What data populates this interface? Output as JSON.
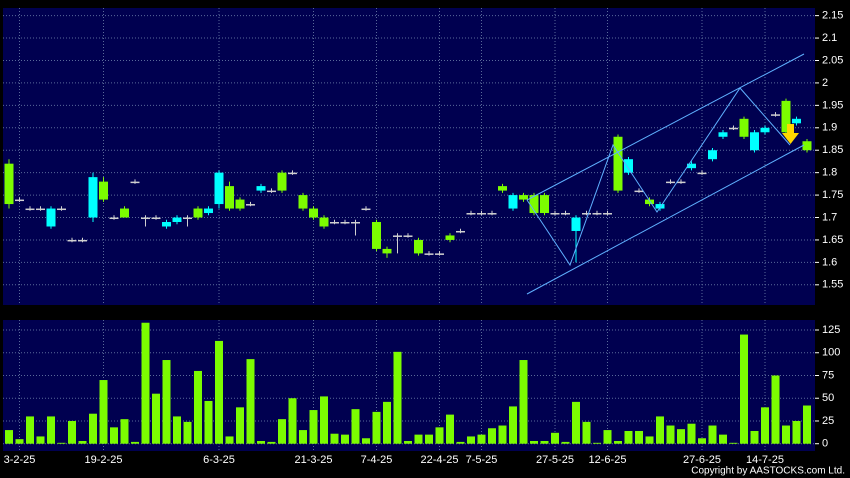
{
  "chart_data": [
    {
      "type": "candlestick",
      "categories": [
        null,
        "3-2-25",
        null,
        null,
        null,
        null,
        null,
        null,
        null,
        "19-2-25",
        null,
        null,
        null,
        null,
        null,
        null,
        null,
        null,
        null,
        null,
        "6-3-25",
        null,
        null,
        null,
        null,
        null,
        null,
        null,
        null,
        "21-3-25",
        null,
        null,
        null,
        null,
        null,
        "7-4-25",
        null,
        null,
        null,
        null,
        null,
        "22-4-25",
        null,
        null,
        null,
        "7-5-25",
        null,
        null,
        null,
        null,
        null,
        null,
        "27-5-25",
        null,
        null,
        null,
        null,
        "12-6-25",
        null,
        null,
        null,
        null,
        null,
        null,
        null,
        null,
        "27-6-25",
        null,
        null,
        null,
        null,
        null,
        "14-7-25",
        null,
        null,
        null,
        null
      ],
      "open": [
        1.73,
        1.74,
        1.72,
        1.72,
        1.72,
        1.72,
        1.65,
        1.65,
        1.79,
        1.74,
        1.7,
        1.7,
        1.78,
        1.7,
        1.7,
        1.69,
        1.7,
        1.7,
        1.7,
        1.72,
        1.8,
        1.72,
        1.72,
        1.73,
        1.77,
        1.76,
        1.76,
        1.8,
        1.72,
        1.7,
        1.68,
        1.69,
        1.69,
        1.69,
        1.72,
        1.63,
        1.62,
        1.66,
        1.66,
        1.62,
        1.62,
        1.62,
        1.65,
        1.67,
        1.71,
        1.71,
        1.71,
        1.76,
        1.75,
        1.74,
        1.71,
        1.71,
        1.71,
        1.71,
        1.7,
        1.71,
        1.71,
        1.71,
        1.76,
        1.83,
        1.76,
        1.73,
        1.73,
        1.78,
        1.78,
        1.82,
        1.8,
        1.85,
        1.89,
        1.9,
        1.88,
        1.89,
        1.9,
        1.93,
        1.89,
        1.92,
        1.85
      ],
      "high": [
        1.83,
        1.745,
        1.725,
        1.725,
        1.725,
        1.725,
        1.655,
        1.655,
        1.8,
        1.79,
        1.705,
        1.725,
        1.785,
        1.705,
        1.705,
        1.695,
        1.705,
        1.705,
        1.725,
        1.725,
        1.805,
        1.78,
        1.745,
        1.735,
        1.775,
        1.765,
        1.805,
        1.805,
        1.755,
        1.725,
        1.705,
        1.695,
        1.695,
        1.695,
        1.725,
        1.695,
        1.635,
        1.665,
        1.665,
        1.655,
        1.625,
        1.625,
        1.665,
        1.675,
        1.715,
        1.715,
        1.715,
        1.775,
        1.755,
        1.755,
        1.755,
        1.755,
        1.715,
        1.715,
        1.705,
        1.715,
        1.715,
        1.715,
        1.885,
        1.835,
        1.765,
        1.745,
        1.735,
        1.785,
        1.785,
        1.825,
        1.805,
        1.855,
        1.895,
        1.905,
        1.925,
        1.895,
        1.905,
        1.935,
        1.965,
        1.925,
        1.875
      ],
      "low": [
        1.72,
        1.735,
        1.715,
        1.715,
        1.675,
        1.715,
        1.645,
        1.645,
        1.69,
        1.735,
        1.695,
        1.7,
        1.775,
        1.68,
        1.695,
        1.675,
        1.685,
        1.68,
        1.695,
        1.705,
        1.72,
        1.715,
        1.715,
        1.725,
        1.755,
        1.755,
        1.755,
        1.795,
        1.715,
        1.695,
        1.675,
        1.685,
        1.685,
        1.66,
        1.715,
        1.625,
        1.61,
        1.62,
        1.655,
        1.615,
        1.615,
        1.615,
        1.645,
        1.665,
        1.705,
        1.705,
        1.705,
        1.755,
        1.715,
        1.735,
        1.705,
        1.705,
        1.705,
        1.705,
        1.6,
        1.705,
        1.705,
        1.705,
        1.755,
        1.795,
        1.755,
        1.725,
        1.715,
        1.775,
        1.775,
        1.805,
        1.795,
        1.825,
        1.875,
        1.895,
        1.875,
        1.845,
        1.885,
        1.925,
        1.885,
        1.905,
        1.845
      ],
      "close": [
        1.82,
        1.74,
        1.72,
        1.72,
        1.68,
        1.72,
        1.65,
        1.65,
        1.7,
        1.78,
        1.7,
        1.72,
        1.78,
        1.7,
        1.7,
        1.68,
        1.69,
        1.7,
        1.72,
        1.71,
        1.73,
        1.77,
        1.74,
        1.73,
        1.76,
        1.76,
        1.8,
        1.8,
        1.75,
        1.72,
        1.7,
        1.69,
        1.69,
        1.69,
        1.72,
        1.69,
        1.63,
        1.66,
        1.66,
        1.65,
        1.62,
        1.62,
        1.66,
        1.67,
        1.71,
        1.71,
        1.71,
        1.77,
        1.72,
        1.75,
        1.75,
        1.75,
        1.71,
        1.71,
        1.67,
        1.71,
        1.71,
        1.71,
        1.88,
        1.8,
        1.76,
        1.74,
        1.72,
        1.78,
        1.78,
        1.81,
        1.8,
        1.83,
        1.88,
        1.9,
        1.92,
        1.85,
        1.89,
        1.93,
        1.96,
        1.91,
        1.87
      ],
      "up_color": "#7cfc00",
      "down_color": "#00ffff",
      "unchanged_color": "#d0d0d0",
      "ylim": [
        1.505,
        2.167
      ],
      "yticks": [
        1.55,
        1.6,
        1.65,
        1.7,
        1.75,
        1.8,
        1.85,
        1.9,
        1.95,
        2,
        2.05,
        2.1,
        2.15
      ],
      "grid": true
    },
    {
      "type": "bar",
      "values": [
        15,
        5,
        30,
        8,
        30,
        1,
        25,
        3,
        33,
        70,
        18,
        27,
        2,
        133,
        55,
        92,
        30,
        24,
        80,
        47,
        113,
        8,
        40,
        93,
        3,
        2,
        27,
        50,
        15,
        37,
        52,
        11,
        10,
        38,
        6,
        35,
        46,
        101,
        3,
        10,
        10,
        18,
        32,
        2,
        8,
        10,
        17,
        20,
        41,
        92,
        3,
        3,
        12,
        2,
        46,
        24,
        1,
        15,
        3,
        14,
        14,
        8,
        30,
        20,
        16,
        22,
        6,
        20,
        10,
        1,
        120,
        14,
        40,
        75,
        20,
        25,
        42
      ],
      "color": "#7cfc00",
      "ylim": [
        -8,
        136
      ],
      "yticks": [
        0,
        25,
        50,
        75,
        100,
        125
      ],
      "grid": true
    }
  ],
  "copyright": "Copyright by AASTOCKS.com Ltd."
}
